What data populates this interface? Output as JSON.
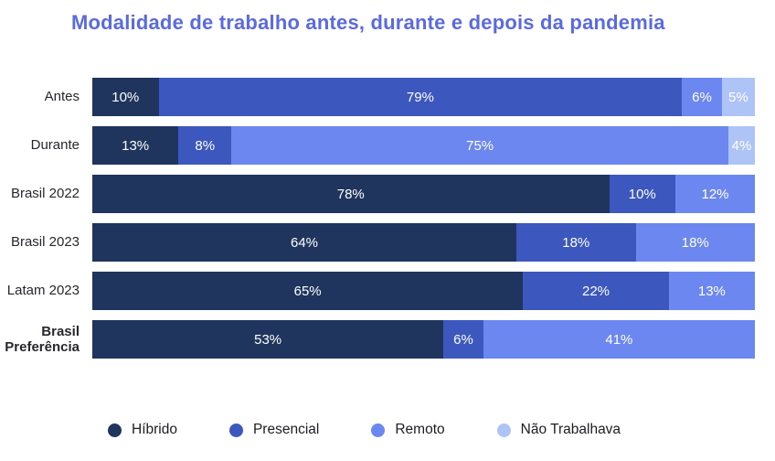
{
  "title": "Modalidade de trabalho antes, durante e depois da pandemia",
  "colors": {
    "title": "#5a6ae0",
    "hibrido": "#20355e",
    "presencial": "#3c58bf",
    "remoto": "#6c88f0",
    "nao_trabalhava": "#aec4f6"
  },
  "chart_data": {
    "type": "bar",
    "orientation": "horizontal",
    "stacked": true,
    "title": "Modalidade de trabalho antes, durante e depois da pandemia",
    "value_suffix": "%",
    "xlim": [
      0,
      100
    ],
    "grid": false,
    "legend_position": "bottom",
    "categories": [
      {
        "label": "Antes",
        "bold": false
      },
      {
        "label": "Durante",
        "bold": false
      },
      {
        "label": "Brasil 2022",
        "bold": false
      },
      {
        "label": "Brasil 2023",
        "bold": false
      },
      {
        "label": "Latam 2023",
        "bold": false
      },
      {
        "label": "Brasil Preferência",
        "bold": true
      }
    ],
    "series": [
      {
        "name": "Híbrido",
        "color": "#20355e",
        "values": [
          10,
          13,
          78,
          64,
          65,
          53
        ]
      },
      {
        "name": "Presencial",
        "color": "#3c58bf",
        "values": [
          79,
          8,
          10,
          18,
          22,
          6
        ]
      },
      {
        "name": "Remoto",
        "color": "#6c88f0",
        "values": [
          6,
          75,
          12,
          18,
          13,
          41
        ]
      },
      {
        "name": "Não Trabalhava",
        "color": "#aec4f6",
        "values": [
          5,
          4,
          0,
          0,
          0,
          0
        ]
      }
    ]
  },
  "legend": [
    {
      "label": "Híbrido",
      "color": "#20355e"
    },
    {
      "label": "Presencial",
      "color": "#3c58bf"
    },
    {
      "label": "Remoto",
      "color": "#6c88f0"
    },
    {
      "label": "Não Trabalhava",
      "color": "#aec4f6"
    }
  ]
}
